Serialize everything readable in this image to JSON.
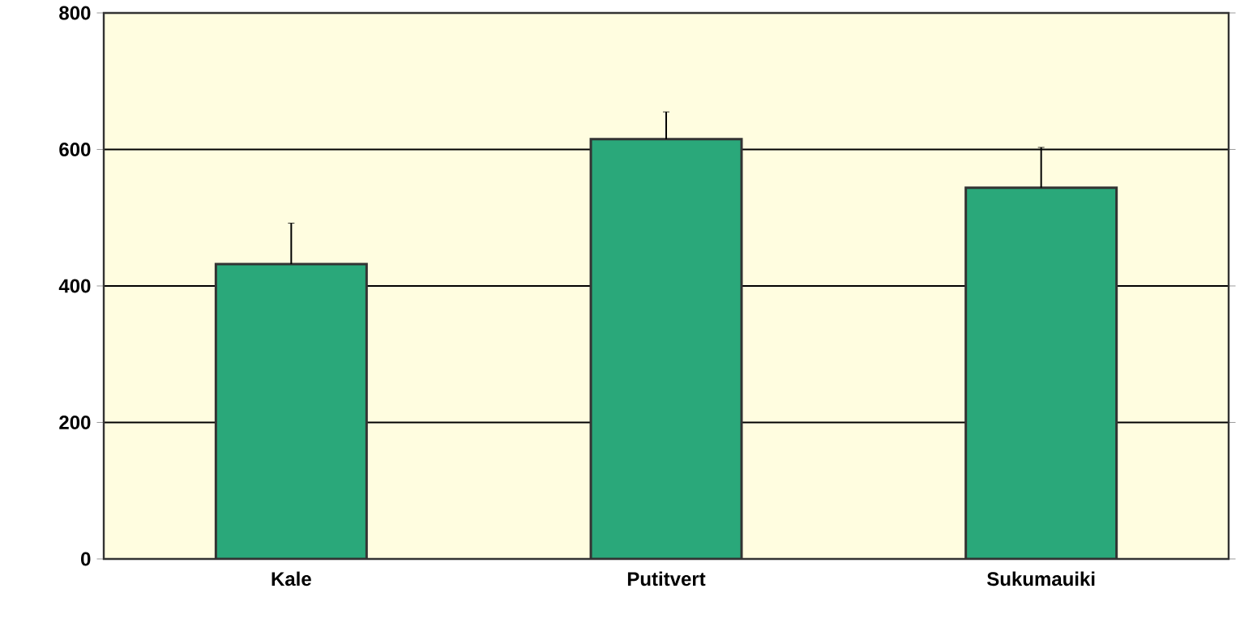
{
  "chart_data": {
    "type": "bar",
    "categories": [
      "Kale",
      "Putitvert",
      "Sukumauiki"
    ],
    "values": [
      432,
      615,
      544
    ],
    "errors": [
      60,
      40,
      59
    ],
    "colors": [
      "#2aa87a",
      "#2aa87a",
      "#2aa87a"
    ],
    "ylim": [
      0,
      800
    ],
    "yticks": [
      0,
      200,
      400,
      600,
      800
    ],
    "grid": "y"
  }
}
